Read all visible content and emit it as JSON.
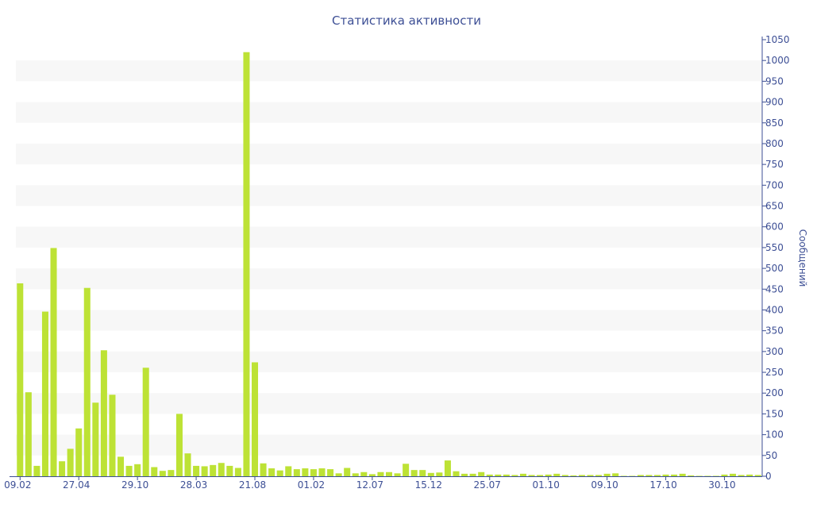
{
  "chart_data": {
    "type": "bar",
    "title": "Статистика активности",
    "xlabel": "",
    "ylabel": "Сообщений",
    "ylim": [
      0,
      1050
    ],
    "y_tick_step": 50,
    "y_axis_side": "right",
    "grid": "alternating horizontal bands",
    "bar_color": "#bde235",
    "text_color": "#3d4f95",
    "x_tick_labels": [
      "09.02",
      "27.04",
      "29.10",
      "28.03",
      "21.08",
      "01.02",
      "12.07",
      "15.12",
      "25.07",
      "01.10",
      "09.10",
      "17.10",
      "30.10"
    ],
    "x_tick_every": 7,
    "values": [
      464,
      202,
      25,
      396,
      549,
      36,
      66,
      115,
      453,
      177,
      303,
      196,
      47,
      25,
      29,
      261,
      22,
      13,
      15,
      150,
      55,
      25,
      24,
      27,
      32,
      25,
      20,
      1020,
      274,
      31,
      19,
      14,
      24,
      17,
      19,
      17,
      19,
      17,
      7,
      20,
      7,
      10,
      5,
      10,
      10,
      7,
      30,
      15,
      15,
      8,
      9,
      38,
      12,
      6,
      6,
      10,
      4,
      4,
      4,
      3,
      6,
      3,
      3,
      4,
      6,
      3,
      2,
      3,
      3,
      3,
      6,
      7,
      1,
      1,
      3,
      3,
      3,
      4,
      4,
      6,
      2,
      1,
      1,
      1,
      4,
      6,
      3,
      4,
      3
    ]
  }
}
